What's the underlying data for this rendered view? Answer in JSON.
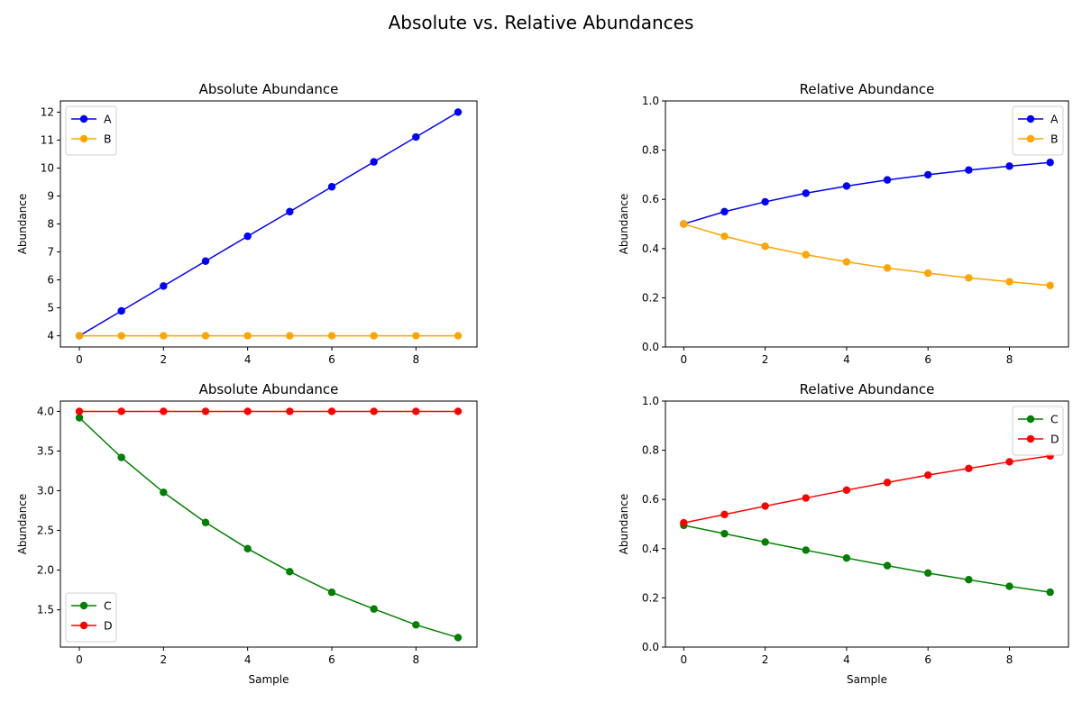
{
  "figure": {
    "title": "Absolute vs. Relative Abundances"
  },
  "chart_data": [
    {
      "type": "line",
      "title": "Absolute Abundance",
      "xlabel": "",
      "ylabel": "Abundance",
      "x": [
        0,
        1,
        2,
        3,
        4,
        5,
        6,
        7,
        8,
        9
      ],
      "xlim": [
        -0.45,
        9.45
      ],
      "ylim": [
        3.6,
        12.4
      ],
      "xticks": [
        0,
        2,
        4,
        6,
        8
      ],
      "yticks": [
        4,
        5,
        6,
        7,
        8,
        9,
        10,
        11,
        12
      ],
      "legend": "upper-left",
      "series": [
        {
          "name": "A",
          "color": "#0000ff",
          "values": [
            4.0,
            4.89,
            5.78,
            6.67,
            7.56,
            8.44,
            9.33,
            10.22,
            11.11,
            12.0
          ]
        },
        {
          "name": "B",
          "color": "#ffa500",
          "values": [
            4,
            4,
            4,
            4,
            4,
            4,
            4,
            4,
            4,
            4
          ]
        }
      ]
    },
    {
      "type": "line",
      "title": "Relative Abundance",
      "xlabel": "",
      "ylabel": "Abundance",
      "x": [
        0,
        1,
        2,
        3,
        4,
        5,
        6,
        7,
        8,
        9
      ],
      "xlim": [
        -0.45,
        9.45
      ],
      "ylim": [
        0.0,
        1.0
      ],
      "xticks": [
        0,
        2,
        4,
        6,
        8
      ],
      "yticks": [
        0.0,
        0.2,
        0.4,
        0.6,
        0.8,
        1.0
      ],
      "ytick_decimals": 1,
      "legend": "upper-right",
      "series": [
        {
          "name": "A",
          "color": "#0000ff",
          "values": [
            0.5,
            0.55,
            0.59,
            0.625,
            0.654,
            0.679,
            0.7,
            0.719,
            0.735,
            0.75
          ]
        },
        {
          "name": "B",
          "color": "#ffa500",
          "values": [
            0.5,
            0.45,
            0.409,
            0.375,
            0.346,
            0.321,
            0.3,
            0.281,
            0.265,
            0.25
          ]
        }
      ]
    },
    {
      "type": "line",
      "title": "Absolute Abundance",
      "xlabel": "Sample",
      "ylabel": "Abundance",
      "x": [
        0,
        1,
        2,
        3,
        4,
        5,
        6,
        7,
        8,
        9
      ],
      "xlim": [
        -0.45,
        9.45
      ],
      "ylim": [
        1.03,
        4.13
      ],
      "xticks": [
        0,
        2,
        4,
        6,
        8
      ],
      "yticks": [
        1.5,
        2.0,
        2.5,
        3.0,
        3.5,
        4.0
      ],
      "ytick_decimals": 1,
      "legend": "lower-left",
      "series": [
        {
          "name": "C",
          "color": "#008000",
          "values": [
            3.92,
            3.42,
            2.98,
            2.6,
            2.27,
            1.98,
            1.72,
            1.51,
            1.31,
            1.15
          ]
        },
        {
          "name": "D",
          "color": "#ff0000",
          "values": [
            4,
            4,
            4,
            4,
            4,
            4,
            4,
            4,
            4,
            4
          ]
        }
      ]
    },
    {
      "type": "line",
      "title": "Relative Abundance",
      "xlabel": "Sample",
      "ylabel": "Abundance",
      "x": [
        0,
        1,
        2,
        3,
        4,
        5,
        6,
        7,
        8,
        9
      ],
      "xlim": [
        -0.45,
        9.45
      ],
      "ylim": [
        0.0,
        1.0
      ],
      "xticks": [
        0,
        2,
        4,
        6,
        8
      ],
      "yticks": [
        0.0,
        0.2,
        0.4,
        0.6,
        0.8,
        1.0
      ],
      "ytick_decimals": 1,
      "legend": "upper-right",
      "series": [
        {
          "name": "C",
          "color": "#008000",
          "values": [
            0.495,
            0.461,
            0.427,
            0.394,
            0.362,
            0.331,
            0.301,
            0.274,
            0.247,
            0.223
          ]
        },
        {
          "name": "D",
          "color": "#ff0000",
          "values": [
            0.505,
            0.539,
            0.573,
            0.606,
            0.638,
            0.669,
            0.699,
            0.726,
            0.753,
            0.777
          ]
        }
      ]
    }
  ]
}
